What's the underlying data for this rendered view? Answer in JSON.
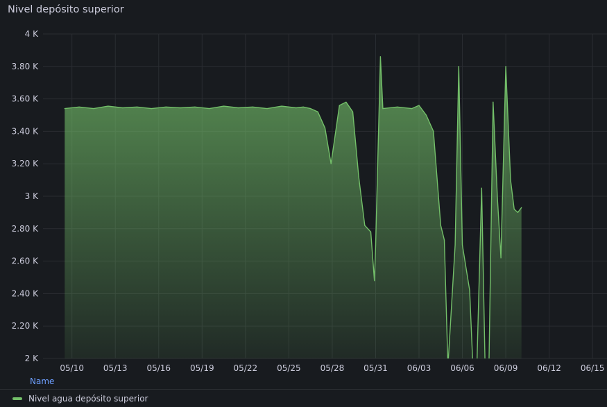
{
  "panel": {
    "title": "Nivel depósito superior",
    "legend_header": "Name"
  },
  "colors": {
    "background": "#181b1f",
    "grid": "#2a2d32",
    "series": "#73bf69",
    "legend_header": "#6e9fff"
  },
  "chart_data": {
    "type": "area",
    "title": "Nivel depósito superior",
    "xlabel": "",
    "ylabel": "",
    "x_axis": "date",
    "xlim": [
      "05/08",
      "06/16"
    ],
    "ylim": [
      2000,
      4000
    ],
    "y_ticks": [
      2000,
      2200,
      2400,
      2600,
      2800,
      3000,
      3200,
      3400,
      3600,
      3800,
      4000
    ],
    "y_tick_labels": [
      "2 K",
      "2.20 K",
      "2.40 K",
      "2.60 K",
      "2.80 K",
      "3 K",
      "3.20 K",
      "3.40 K",
      "3.60 K",
      "3.80 K",
      "4 K"
    ],
    "x_ticks": [
      "05/10",
      "05/13",
      "05/16",
      "05/19",
      "05/22",
      "05/25",
      "05/28",
      "05/31",
      "06/03",
      "06/06",
      "06/09",
      "06/12",
      "06/15"
    ],
    "grid": true,
    "legend": "bottom-left",
    "series": [
      {
        "name": "Nivel agua depósito superior",
        "x": [
          "05/09 12:00",
          "05/10 12:00",
          "05/11 12:00",
          "05/12 12:00",
          "05/13 12:00",
          "05/14 12:00",
          "05/15 12:00",
          "05/16 12:00",
          "05/17 12:00",
          "05/18 12:00",
          "05/19 12:00",
          "05/20 12:00",
          "05/21 12:00",
          "05/22 12:00",
          "05/23 12:00",
          "05/24 12:00",
          "05/25 12:00",
          "05/26 00:00",
          "05/26 12:00",
          "05/27 00:00",
          "05/27 12:00",
          "05/27 22:00",
          "05/28 12:00",
          "05/28 23:00",
          "05/29 10:00",
          "05/29 20:00",
          "05/30 06:00",
          "05/30 16:00",
          "05/30 22:00",
          "05/31 00:00",
          "05/31 08:00",
          "05/31 12:00",
          "06/01 12:00",
          "06/02 12:00",
          "06/03 00:00",
          "06/03 12:00",
          "06/04 00:00",
          "06/04 12:00",
          "06/04 18:00",
          "06/05 00:00",
          "06/05 12:00",
          "06/05 18:00",
          "06/06 00:00",
          "06/06 12:00",
          "06/06 18:00",
          "06/07 00:00",
          "06/07 08:00",
          "06/07 14:00",
          "06/07 20:00",
          "06/08 03:00",
          "06/08 10:00",
          "06/08 16:00",
          "06/09 00:00",
          "06/09 08:00",
          "06/09 14:00",
          "06/09 20:00",
          "06/10 02:00"
        ],
        "values": [
          3540,
          3550,
          3540,
          3555,
          3545,
          3550,
          3540,
          3550,
          3545,
          3550,
          3540,
          3555,
          3545,
          3550,
          3540,
          3555,
          3545,
          3550,
          3540,
          3520,
          3420,
          3200,
          3560,
          3580,
          3520,
          3120,
          2820,
          2780,
          2480,
          2700,
          3860,
          3540,
          3550,
          3540,
          3560,
          3500,
          3400,
          2820,
          2730,
          1950,
          2700,
          3800,
          2700,
          2420,
          1900,
          1950,
          3050,
          1900,
          1950,
          3580,
          3000,
          2620,
          3800,
          3100,
          2920,
          2900,
          2930
        ]
      }
    ]
  }
}
